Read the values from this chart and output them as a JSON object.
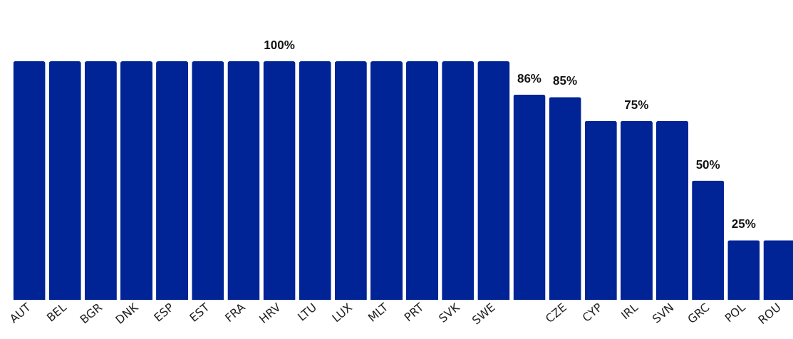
{
  "chart_data": {
    "type": "bar",
    "categories": [
      "AUT",
      "BEL",
      "BGR",
      "DNK",
      "ESP",
      "EST",
      "FRA",
      "HRV",
      "LTU",
      "LUX",
      "MLT",
      "PRT",
      "SVK",
      "SWE",
      null,
      "CZE",
      "CYP",
      "IRL",
      "SVN",
      "GRC",
      "POL",
      "ROU"
    ],
    "values": [
      100,
      100,
      100,
      100,
      100,
      100,
      100,
      100,
      100,
      100,
      100,
      100,
      100,
      100,
      86,
      85,
      75,
      75,
      75,
      50,
      25,
      25
    ],
    "value_labels": [
      null,
      null,
      null,
      null,
      null,
      null,
      null,
      "100%",
      null,
      null,
      null,
      null,
      null,
      null,
      "86%",
      "85%",
      null,
      "75%",
      null,
      "50%",
      "25%",
      null
    ],
    "color": "#002395",
    "ylim": [
      0,
      100
    ],
    "grid": false
  }
}
